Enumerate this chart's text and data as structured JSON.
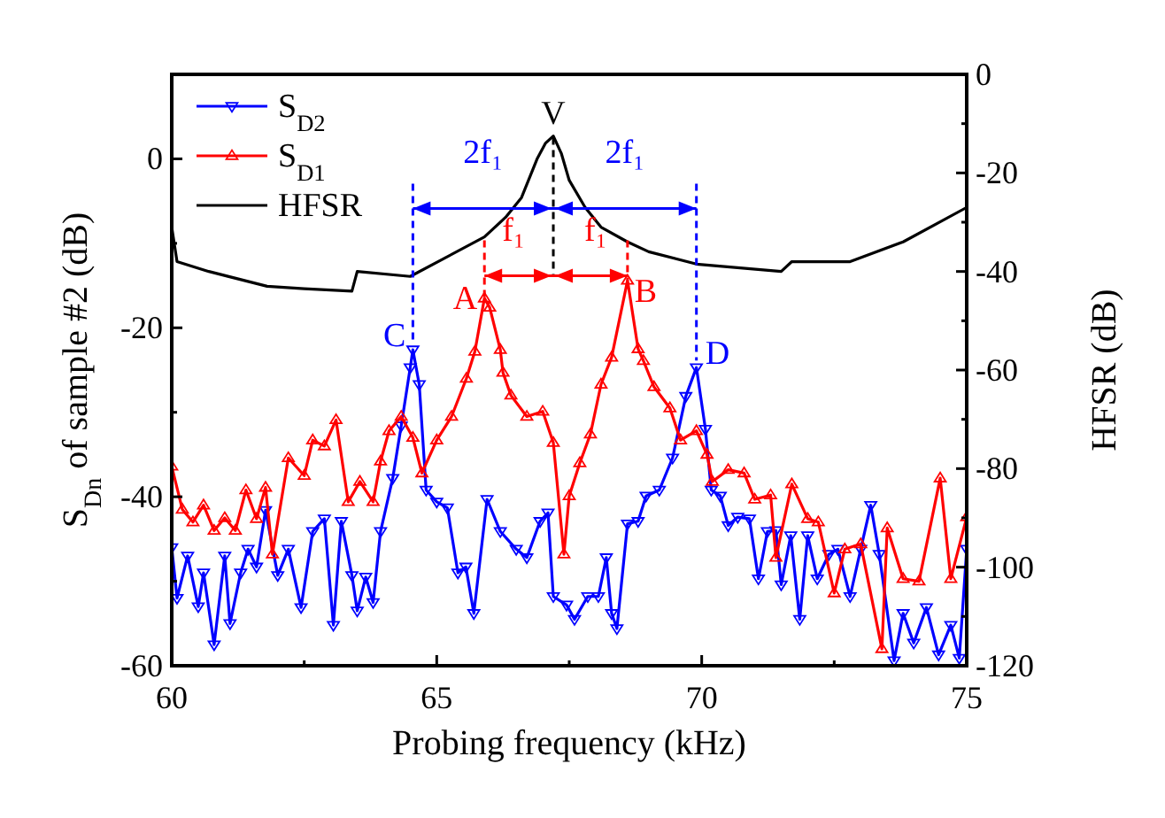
{
  "chart_data": {
    "type": "line",
    "xlabel": "Probing frequency (kHz)",
    "ylabel": "S$_{Dn}$ of sample #2 (dB)",
    "y2label": "HFSR (dB)",
    "xlim": [
      60,
      75
    ],
    "xticks": [
      60,
      65,
      70,
      75
    ],
    "ylim": [
      -60,
      10
    ],
    "yticks": [
      -60,
      -40,
      -20,
      0
    ],
    "y2lim": [
      -120,
      0
    ],
    "y2ticks": [
      -120,
      -100,
      -80,
      -60,
      -40,
      -20,
      0
    ],
    "legend": "top left",
    "grid": false,
    "series": [
      {
        "name": "S$_{D2}$",
        "color": "#0000ff",
        "marker": "triangle",
        "x": [
          60.0,
          60.1,
          60.3,
          60.5,
          60.6,
          60.8,
          61.0,
          61.1,
          61.3,
          61.44,
          61.6,
          61.77,
          62.0,
          62.2,
          62.44,
          62.66,
          62.88,
          63.05,
          63.2,
          63.4,
          63.5,
          63.66,
          63.8,
          63.94,
          64.17,
          64.33,
          64.5,
          64.55,
          64.67,
          64.8,
          65.0,
          65.2,
          65.4,
          65.55,
          65.7,
          65.95,
          66.2,
          66.5,
          66.7,
          66.95,
          67.1,
          67.2,
          67.45,
          67.6,
          67.85,
          68.05,
          68.2,
          68.3,
          68.4,
          68.6,
          68.8,
          68.95,
          69.2,
          69.45,
          69.7,
          69.9,
          70.07,
          70.18,
          70.35,
          70.5,
          70.68,
          70.9,
          71.07,
          71.24,
          71.4,
          71.5,
          71.68,
          71.85,
          72.0,
          72.18,
          72.4,
          72.57,
          72.8,
          73.0,
          73.19,
          73.35,
          73.63,
          73.8,
          74.0,
          74.24,
          74.47,
          74.7,
          74.86,
          75.0
        ],
        "values": [
          -46,
          -52,
          -47,
          -53,
          -49,
          -57.5,
          -47,
          -55,
          -49,
          -46.2,
          -48.3,
          -41.6,
          -49.3,
          -46.2,
          -53.1,
          -44.1,
          -42.6,
          -55.2,
          -42.9,
          -49.3,
          -53.5,
          -49.5,
          -52.5,
          -44.1,
          -37.8,
          -31.6,
          -24.7,
          -22.6,
          -26.7,
          -39.2,
          -40.6,
          -41.3,
          -49,
          -48.3,
          -53.8,
          -40.3,
          -44.1,
          -46.2,
          -47.2,
          -42.9,
          -41.9,
          -51.8,
          -52.8,
          -54.5,
          -51.8,
          -51.8,
          -47.2,
          -53.8,
          -55.6,
          -43.2,
          -42.9,
          -39.9,
          -39.2,
          -35.4,
          -28.1,
          -24.7,
          -32,
          -39.2,
          -39.9,
          -43.4,
          -42.4,
          -42.6,
          -49.7,
          -44.1,
          -44,
          -50.4,
          -44.6,
          -54.5,
          -44.6,
          -49.7,
          -46.8,
          -46.2,
          -51.8,
          -46.2,
          -41,
          -46.8,
          -59.4,
          -53.8,
          -57.3,
          -53.1,
          -58.7,
          -55.2,
          -59.1,
          -46.2
        ]
      },
      {
        "name": "S$_{D1}$",
        "color": "#ff0000",
        "marker": "triangle",
        "x": [
          60.0,
          60.2,
          60.4,
          60.6,
          60.8,
          61.0,
          61.2,
          61.4,
          61.6,
          61.77,
          61.9,
          62.2,
          62.5,
          62.66,
          62.88,
          63.1,
          63.33,
          63.55,
          63.8,
          63.94,
          64.1,
          64.33,
          64.55,
          64.72,
          65.0,
          65.28,
          65.56,
          65.72,
          65.9,
          66.0,
          66.2,
          66.25,
          66.4,
          66.7,
          67.0,
          67.2,
          67.4,
          67.5,
          67.7,
          67.9,
          68.1,
          68.3,
          68.6,
          68.8,
          68.9,
          69.1,
          69.4,
          69.6,
          69.9,
          70.1,
          70.2,
          70.5,
          70.8,
          71.0,
          71.3,
          71.4,
          71.7,
          72.0,
          72.2,
          72.5,
          72.7,
          73.0,
          73.4,
          73.5,
          73.8,
          74.1,
          74.5,
          74.7,
          75.0
        ],
        "values": [
          -36.4,
          -41.5,
          -43,
          -41,
          -44,
          -42.5,
          -44,
          -39.2,
          -42.6,
          -38.9,
          -46.8,
          -35.4,
          -37.5,
          -33.3,
          -34,
          -30.9,
          -40.6,
          -38.2,
          -40.6,
          -35.8,
          -32.2,
          -30.5,
          -33,
          -37.2,
          -33.3,
          -30.5,
          -26,
          -22.8,
          -16.5,
          -17.6,
          -22.6,
          -25.3,
          -28,
          -30.5,
          -29.9,
          -33.6,
          -46.8,
          -39.9,
          -36,
          -32.6,
          -26.7,
          -23.5,
          -14.4,
          -22.5,
          -23.9,
          -27,
          -29.5,
          -33.3,
          -32.2,
          -35,
          -38.2,
          -36.8,
          -37.2,
          -40.3,
          -39.8,
          -47.2,
          -38.5,
          -42.6,
          -43,
          -51.4,
          -46.2,
          -45.6,
          -58,
          -43.7,
          -49.7,
          -50,
          -37.8,
          -49.7,
          -42.4
        ]
      },
      {
        "name": "HFSR",
        "color": "#000000",
        "axis": "y2",
        "marker": "none",
        "x": [
          60.0,
          60.1,
          60.7,
          61.8,
          62.5,
          63.4,
          63.5,
          64.5,
          65.9,
          66.3,
          66.6,
          66.9,
          67.05,
          67.2,
          67.35,
          67.5,
          67.8,
          68.1,
          68.6,
          69.0,
          69.9,
          71.5,
          71.7,
          72.8,
          73.8,
          75.0
        ],
        "values": [
          -31,
          -38,
          -40,
          -43,
          -43.5,
          -44,
          -40,
          -41,
          -33,
          -29,
          -25,
          -17,
          -14,
          -12.5,
          -16,
          -21.5,
          -27,
          -31,
          -34,
          -36,
          -38.5,
          -40,
          -38,
          -38,
          -34,
          -27
        ]
      }
    ],
    "annotations": [
      {
        "text": "V",
        "x": 67.2,
        "y": 2.5
      },
      {
        "text": "A",
        "x": 65.9,
        "y": -16.5
      },
      {
        "text": "B",
        "x": 68.6,
        "y": -14.4
      },
      {
        "text": "C",
        "x": 64.55,
        "y": -22.6
      },
      {
        "text": "D",
        "x": 69.9,
        "y": -24.7
      },
      "2f₁",
      "2f₁",
      {
        "text": "f₁",
        "x": 67.2,
        "y": 2.5
      },
      {
        "text": "f₁",
        "x": 67.2,
        "y": 2.5
      }
    ]
  }
}
